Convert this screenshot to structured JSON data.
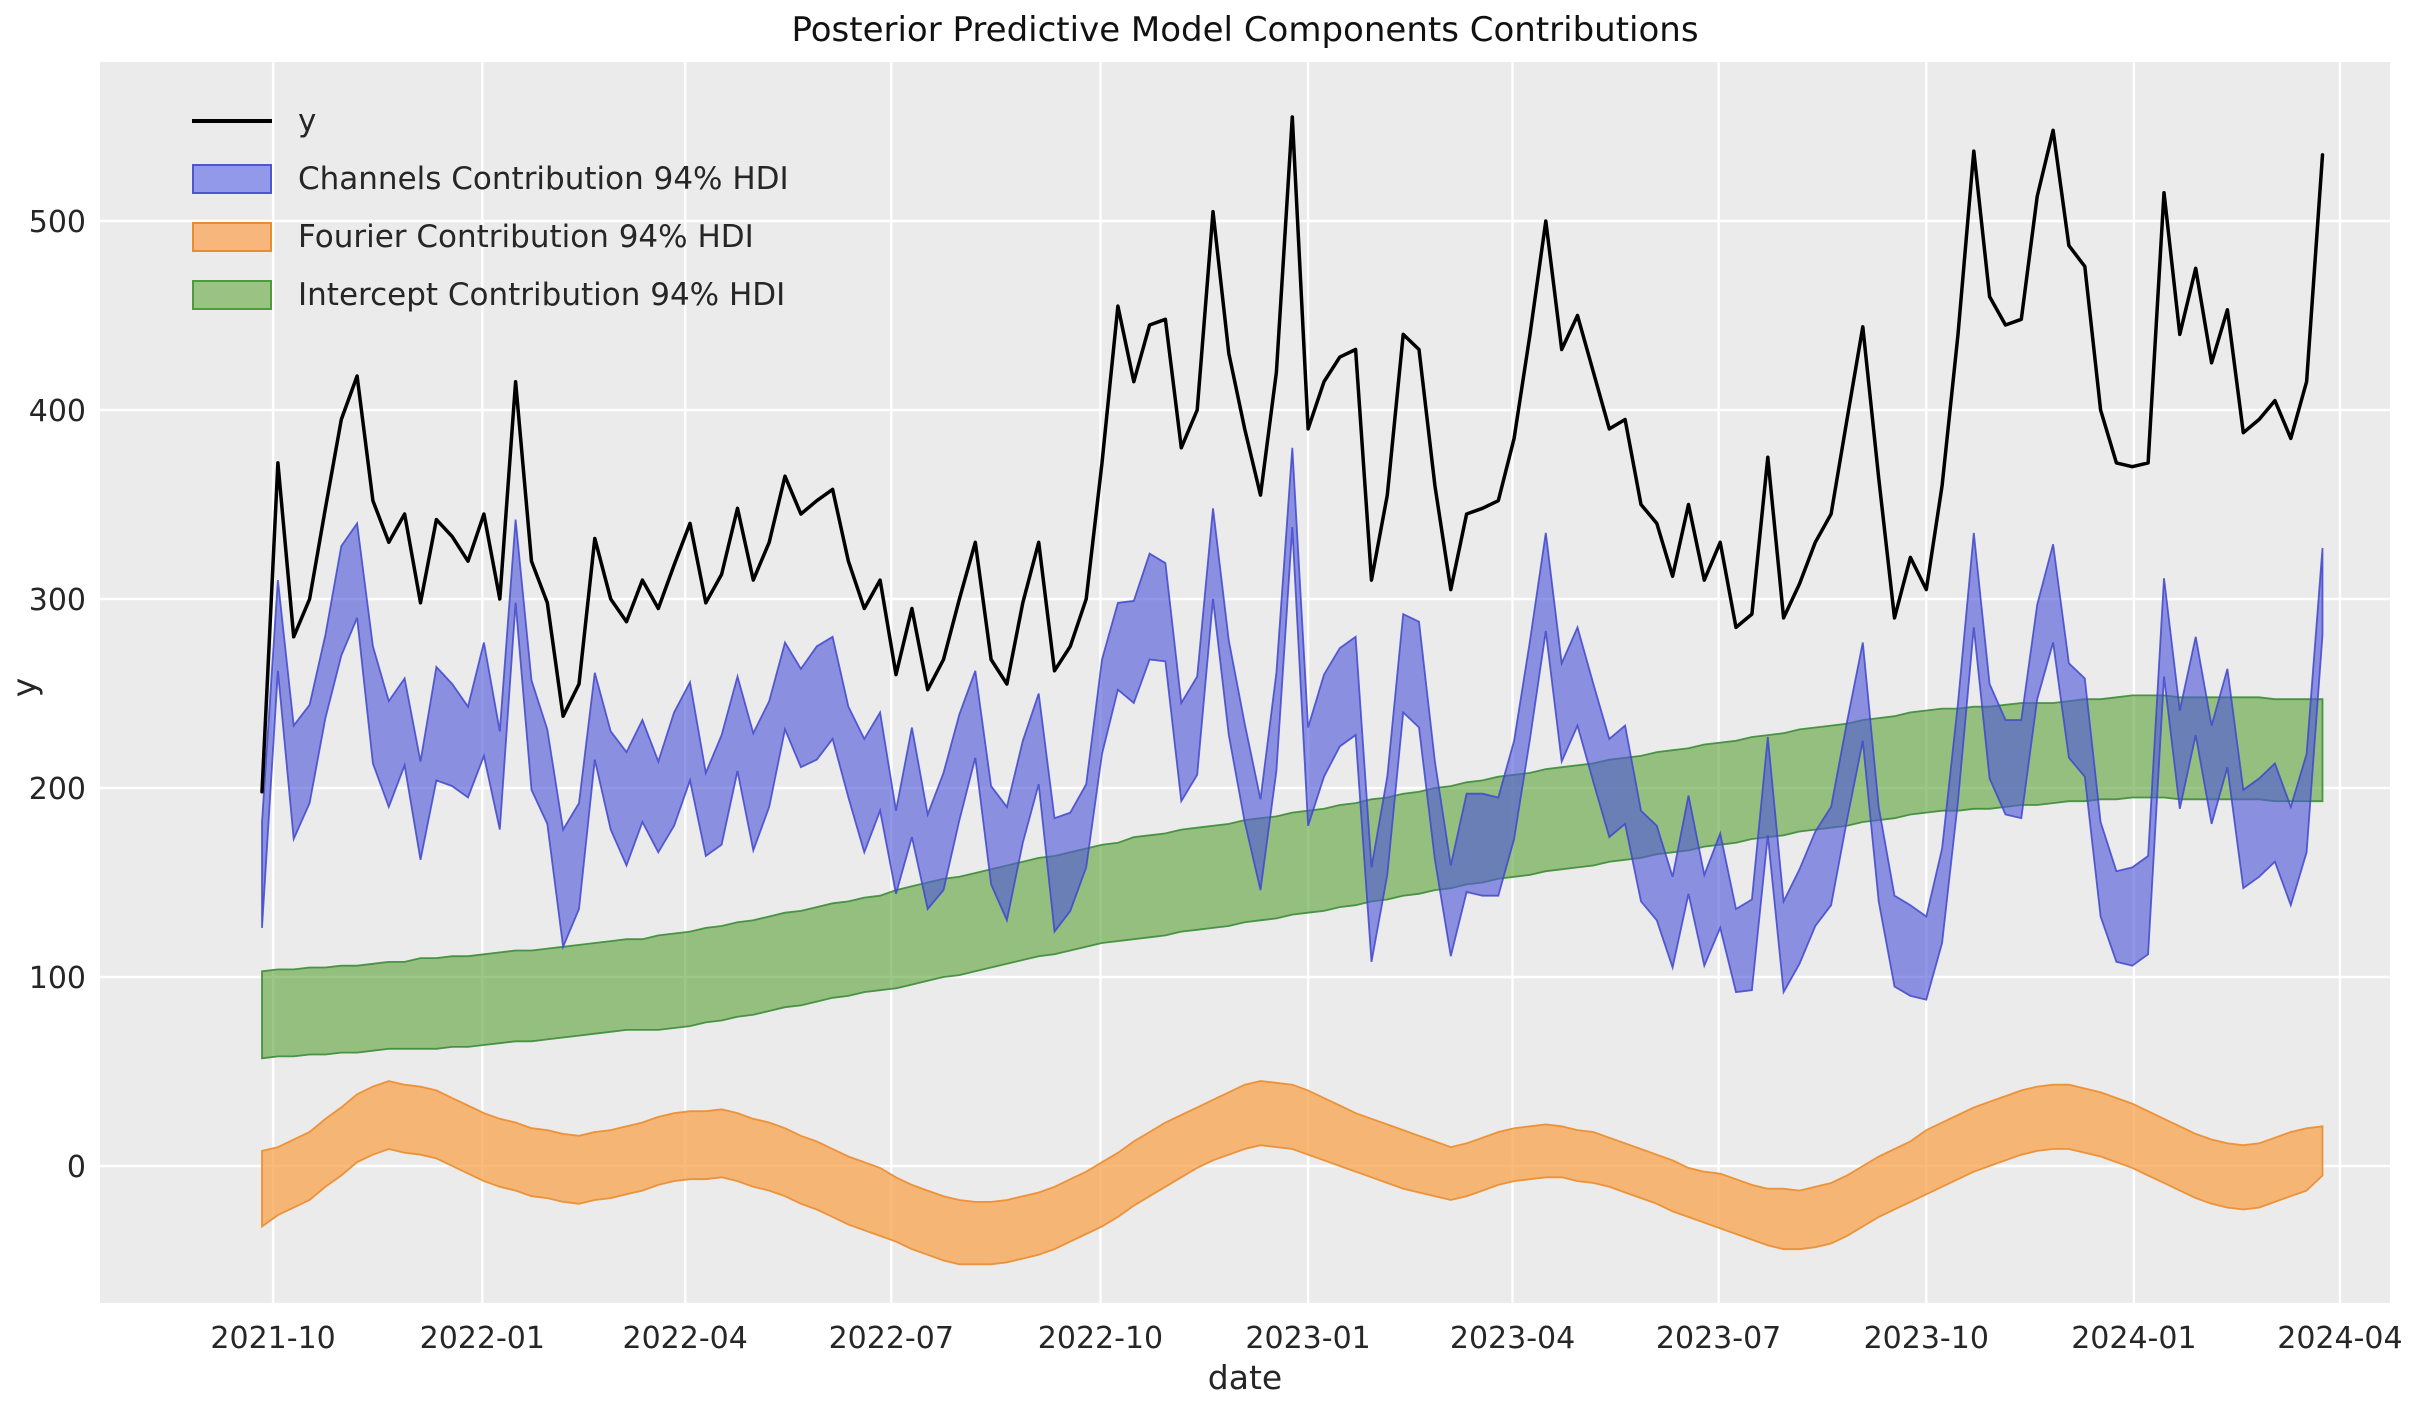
{
  "title": "Posterior Predictive Model Components Contributions",
  "xlabel": "date",
  "ylabel": "y",
  "legend": {
    "items": [
      {
        "label": "y",
        "swatch": "line",
        "color": "#000000"
      },
      {
        "label": "Channels Contribution 94% HDI",
        "swatch": "patch",
        "fill": "#9298ea",
        "edge": "#4d55cf"
      },
      {
        "label": "Fourier Contribution 94% HDI",
        "swatch": "patch",
        "fill": "#f6b67c",
        "edge": "#eb8d2f"
      },
      {
        "label": "Intercept Contribution 94% HDI",
        "swatch": "patch",
        "fill": "#9ac283",
        "edge": "#4f9a3c"
      }
    ]
  },
  "colors": {
    "figure_bg": "#ffffff",
    "axes_bg": "#ebebeb",
    "grid": "#ffffff",
    "tick_text": "#262626",
    "line_y": "#000000"
  },
  "chart_data": {
    "type": "line",
    "title": "Posterior Predictive Model Components Contributions",
    "xlabel": "date",
    "ylabel": "y",
    "grid": true,
    "legend_position": "upper left",
    "x_start": "2021-09-26",
    "x_freq_days": 7,
    "n_points": 131,
    "ylim": [
      -72,
      584
    ],
    "y_ticks": [
      0,
      100,
      200,
      300,
      400,
      500
    ],
    "x_ticks": [
      {
        "label": "2021-10",
        "i": 0.7
      },
      {
        "label": "2022-01",
        "i": 13.9
      },
      {
        "label": "2022-04",
        "i": 26.7
      },
      {
        "label": "2022-07",
        "i": 39.7
      },
      {
        "label": "2022-10",
        "i": 52.9
      },
      {
        "label": "2023-01",
        "i": 66.0
      },
      {
        "label": "2023-04",
        "i": 78.9
      },
      {
        "label": "2023-07",
        "i": 91.9
      },
      {
        "label": "2023-10",
        "i": 105.0
      },
      {
        "label": "2024-01",
        "i": 118.1
      },
      {
        "label": "2024-04",
        "i": 131.1
      }
    ],
    "series": [
      {
        "name": "y",
        "type": "line",
        "stroke": "#000000",
        "stroke_width": 3.5,
        "values": [
          198,
          372,
          280,
          300,
          348,
          395,
          418,
          352,
          330,
          345,
          298,
          342,
          333,
          320,
          345,
          300,
          415,
          320,
          298,
          238,
          255,
          332,
          300,
          288,
          310,
          295,
          318,
          340,
          298,
          313,
          348,
          310,
          330,
          365,
          345,
          352,
          358,
          320,
          295,
          310,
          260,
          295,
          252,
          268,
          300,
          330,
          268,
          255,
          298,
          330,
          262,
          275,
          300,
          372,
          455,
          415,
          445,
          448,
          380,
          400,
          505,
          430,
          390,
          355,
          420,
          555,
          390,
          415,
          428,
          432,
          310,
          355,
          440,
          432,
          360,
          305,
          345,
          348,
          352,
          385,
          440,
          500,
          432,
          450,
          420,
          390,
          395,
          350,
          340,
          312,
          350,
          310,
          330,
          285,
          292,
          375,
          290,
          308,
          330,
          345,
          395,
          444,
          364,
          290,
          322,
          305,
          360,
          440,
          537,
          460,
          445,
          448,
          513,
          548,
          487,
          476,
          400,
          372,
          370,
          372,
          515,
          440,
          475,
          425,
          453,
          388,
          395,
          405,
          385,
          415,
          535
        ]
      },
      {
        "name": "Channels Contribution 94% HDI",
        "type": "band",
        "fill": "rgba(80,87,218,0.62)",
        "edge": "rgba(63,70,205,0.85)",
        "lo": [
          126,
          262,
          173,
          192,
          237,
          270,
          290,
          213,
          190,
          212,
          162,
          204,
          201,
          195,
          217,
          178,
          298,
          199,
          181,
          116,
          136,
          215,
          178,
          159,
          182,
          166,
          180,
          204,
          164,
          170,
          209,
          167,
          190,
          231,
          211,
          215,
          226,
          195,
          166,
          188,
          144,
          174,
          136,
          146,
          183,
          216,
          149,
          130,
          171,
          202,
          124,
          135,
          158,
          218,
          252,
          245,
          268,
          267,
          193,
          207,
          300,
          228,
          182,
          146,
          209,
          338,
          180,
          206,
          222,
          228,
          108,
          154,
          240,
          232,
          162,
          111,
          145,
          143,
          143,
          173,
          226,
          283,
          214,
          233,
          203,
          174,
          181,
          140,
          130,
          105,
          144,
          106,
          126,
          92,
          93,
          175,
          92,
          107,
          127,
          138,
          183,
          225,
          140,
          95,
          90,
          88,
          118,
          193,
          285,
          205,
          186,
          184,
          247,
          277,
          216,
          206,
          132,
          108,
          106,
          112,
          259,
          189,
          228,
          181,
          211,
          147,
          153,
          161,
          138,
          166,
          281
        ],
        "hi": [
          182,
          310,
          233,
          244,
          281,
          328,
          340,
          275,
          246,
          258,
          214,
          264,
          255,
          243,
          277,
          230,
          342,
          257,
          231,
          178,
          192,
          261,
          230,
          219,
          236,
          214,
          240,
          256,
          208,
          228,
          259,
          229,
          246,
          277,
          263,
          275,
          280,
          243,
          226,
          240,
          188,
          232,
          186,
          208,
          239,
          262,
          201,
          190,
          225,
          250,
          184,
          187,
          202,
          268,
          298,
          299,
          324,
          319,
          245,
          259,
          348,
          278,
          234,
          194,
          261,
          380,
          232,
          260,
          274,
          280,
          158,
          206,
          292,
          288,
          214,
          159,
          197,
          197,
          195,
          225,
          278,
          335,
          266,
          285,
          255,
          226,
          233,
          188,
          180,
          153,
          196,
          154,
          176,
          136,
          141,
          227,
          140,
          157,
          177,
          190,
          235,
          277,
          190,
          143,
          138,
          132,
          168,
          245,
          335,
          255,
          236,
          236,
          297,
          329,
          266,
          258,
          182,
          156,
          158,
          164,
          311,
          241,
          280,
          233,
          263,
          199,
          205,
          213,
          190,
          218,
          327
        ]
      },
      {
        "name": "Fourier Contribution 94% HDI",
        "type": "band",
        "fill": "rgba(248,160,70,0.72)",
        "edge": "rgba(235,140,45,0.9)",
        "lo": [
          -32,
          -26,
          -22,
          -18,
          -11,
          -5,
          2,
          6,
          9,
          7,
          6,
          4,
          0,
          -4,
          -8,
          -11,
          -13,
          -16,
          -17,
          -19,
          -20,
          -18,
          -17,
          -15,
          -13,
          -10,
          -8,
          -7,
          -7,
          -6,
          -8,
          -11,
          -13,
          -16,
          -20,
          -23,
          -27,
          -31,
          -34,
          -37,
          -40,
          -44,
          -47,
          -50,
          -52,
          -52,
          -52,
          -51,
          -49,
          -47,
          -44,
          -40,
          -36,
          -32,
          -27,
          -21,
          -16,
          -11,
          -6,
          -1,
          3,
          6,
          9,
          11,
          10,
          9,
          6,
          3,
          0,
          -3,
          -6,
          -9,
          -12,
          -14,
          -16,
          -18,
          -16,
          -13,
          -10,
          -8,
          -7,
          -6,
          -6,
          -8,
          -9,
          -11,
          -14,
          -17,
          -20,
          -24,
          -27,
          -30,
          -33,
          -36,
          -39,
          -42,
          -44,
          -44,
          -43,
          -41,
          -37,
          -32,
          -27,
          -23,
          -19,
          -15,
          -11,
          -7,
          -3,
          0,
          3,
          6,
          8,
          9,
          9,
          7,
          5,
          2,
          -1,
          -5,
          -9,
          -13,
          -17,
          -20,
          -22,
          -23,
          -22,
          -19,
          -16,
          -13,
          -5
        ],
        "hi": [
          8,
          10,
          14,
          18,
          25,
          31,
          38,
          42,
          45,
          43,
          42,
          40,
          36,
          32,
          28,
          25,
          23,
          20,
          19,
          17,
          16,
          18,
          19,
          21,
          23,
          26,
          28,
          29,
          29,
          30,
          28,
          25,
          23,
          20,
          16,
          13,
          9,
          5,
          2,
          -1,
          -6,
          -10,
          -13,
          -16,
          -18,
          -19,
          -19,
          -18,
          -16,
          -14,
          -11,
          -7,
          -3,
          2,
          7,
          13,
          18,
          23,
          27,
          31,
          35,
          39,
          43,
          45,
          44,
          43,
          40,
          36,
          32,
          28,
          25,
          22,
          19,
          16,
          13,
          10,
          12,
          15,
          18,
          20,
          21,
          22,
          21,
          19,
          18,
          15,
          12,
          9,
          6,
          3,
          -1,
          -3,
          -4,
          -7,
          -10,
          -12,
          -12,
          -13,
          -11,
          -9,
          -5,
          0,
          5,
          9,
          13,
          19,
          23,
          27,
          31,
          34,
          37,
          40,
          42,
          43,
          43,
          41,
          39,
          36,
          33,
          29,
          25,
          21,
          17,
          14,
          12,
          11,
          12,
          15,
          18,
          20,
          21
        ]
      },
      {
        "name": "Intercept Contribution 94% HDI",
        "type": "band",
        "fill": "rgba(86,158,47,0.58)",
        "edge": "rgba(60,140,55,0.9)",
        "lo": [
          57,
          58,
          58,
          59,
          59,
          60,
          60,
          61,
          62,
          62,
          62,
          62,
          63,
          63,
          64,
          65,
          66,
          66,
          67,
          68,
          69,
          70,
          71,
          72,
          72,
          72,
          73,
          74,
          76,
          77,
          79,
          80,
          82,
          84,
          85,
          87,
          89,
          90,
          92,
          93,
          94,
          96,
          98,
          100,
          101,
          103,
          105,
          107,
          109,
          111,
          112,
          114,
          116,
          118,
          119,
          120,
          121,
          122,
          124,
          125,
          126,
          127,
          129,
          130,
          131,
          133,
          134,
          135,
          137,
          138,
          140,
          141,
          143,
          144,
          146,
          147,
          149,
          150,
          152,
          153,
          154,
          156,
          157,
          158,
          159,
          161,
          162,
          163,
          165,
          166,
          167,
          169,
          170,
          171,
          173,
          174,
          175,
          177,
          178,
          179,
          180,
          182,
          183,
          184,
          186,
          187,
          188,
          188,
          189,
          189,
          190,
          191,
          191,
          192,
          193,
          193,
          194,
          194,
          195,
          195,
          195,
          194,
          194,
          194,
          194,
          194,
          194,
          193,
          193,
          193,
          193
        ],
        "hi": [
          103,
          104,
          104,
          105,
          105,
          106,
          106,
          107,
          108,
          108,
          110,
          110,
          111,
          111,
          112,
          113,
          114,
          114,
          115,
          116,
          117,
          118,
          119,
          120,
          120,
          122,
          123,
          124,
          126,
          127,
          129,
          130,
          132,
          134,
          135,
          137,
          139,
          140,
          142,
          143,
          146,
          148,
          150,
          152,
          153,
          155,
          157,
          159,
          161,
          163,
          164,
          166,
          168,
          170,
          171,
          174,
          175,
          176,
          178,
          179,
          180,
          181,
          183,
          184,
          185,
          187,
          188,
          189,
          191,
          192,
          194,
          195,
          197,
          198,
          200,
          201,
          203,
          204,
          206,
          207,
          208,
          210,
          211,
          212,
          213,
          215,
          216,
          217,
          219,
          220,
          221,
          223,
          224,
          225,
          227,
          228,
          229,
          231,
          232,
          233,
          234,
          236,
          237,
          238,
          240,
          241,
          242,
          242,
          243,
          243,
          244,
          245,
          245,
          245,
          246,
          247,
          247,
          248,
          249,
          249,
          249,
          248,
          248,
          248,
          248,
          248,
          248,
          247,
          247,
          247,
          247
        ]
      }
    ]
  }
}
